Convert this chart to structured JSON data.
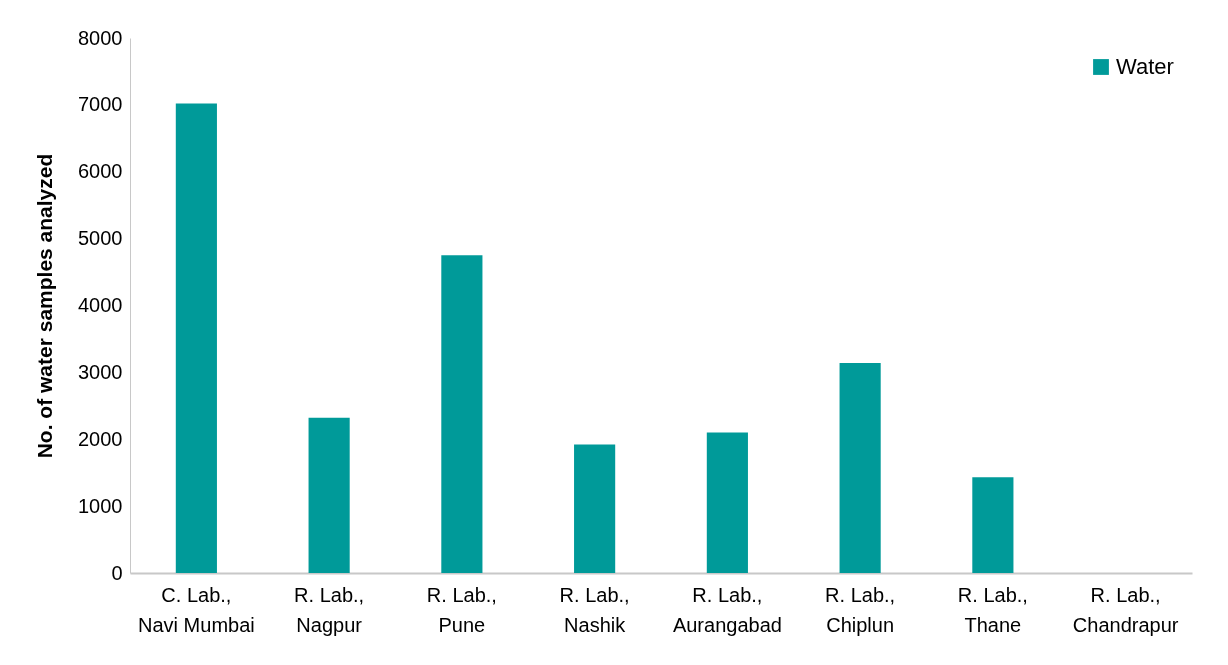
{
  "chart_data": {
    "type": "bar",
    "ylabel": "No. of water samples analyzed",
    "categories": [
      "C. Lab., Navi Mumbai",
      "R. Lab., Nagpur",
      "R. Lab., Pune",
      "R. Lab., Nashik",
      "R. Lab., Aurangabad",
      "R. Lab., Chiplun",
      "R. Lab., Thane",
      "R. Lab., Chandrapur"
    ],
    "series": [
      {
        "name": "Water",
        "color": "#009a99",
        "values": [
          7020,
          2320,
          4750,
          1920,
          2100,
          3140,
          1430,
          0
        ]
      }
    ],
    "ylim": [
      0,
      8000
    ],
    "yticks": [
      0,
      1000,
      2000,
      3000,
      4000,
      5000,
      6000,
      7000,
      8000
    ],
    "grid": false,
    "legend": "top right"
  }
}
